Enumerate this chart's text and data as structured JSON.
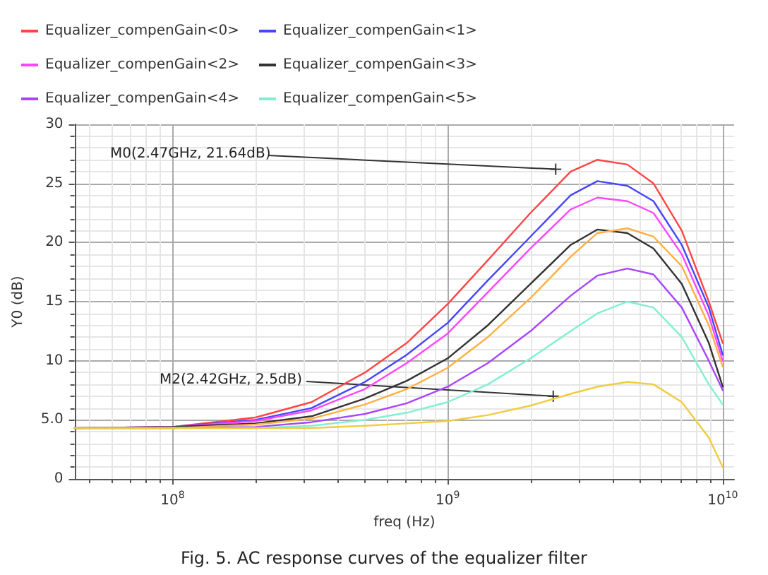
{
  "chart_data": {
    "type": "line",
    "xlabel": "freq (Hz)",
    "ylabel": "Y0 (dB)",
    "x": [
      44000000.0,
      100000000.0,
      200000000.0,
      320000000.0,
      500000000.0,
      710000000.0,
      1000000000.0,
      1400000000.0,
      2000000000.0,
      2800000000.0,
      3500000000.0,
      4500000000.0,
      5600000000.0,
      7100000000.0,
      8900000000.0,
      10000000000.0
    ],
    "series": [
      {
        "name": "Equalizer_compenGain<0>",
        "color": "#ff4545",
        "values": [
          4.3,
          4.4,
          5.2,
          6.5,
          9.0,
          11.5,
          14.8,
          18.5,
          22.5,
          26.0,
          27.0,
          26.6,
          25.0,
          21.0,
          15.0,
          11.5
        ]
      },
      {
        "name": "Equalizer_compenGain<1>",
        "color": "#4545ff",
        "values": [
          4.3,
          4.4,
          5.0,
          6.0,
          8.2,
          10.5,
          13.2,
          16.8,
          20.5,
          24.0,
          25.2,
          24.8,
          23.5,
          19.8,
          14.5,
          10.5
        ]
      },
      {
        "name": "Equalizer_compenGain<2>",
        "color": "#ff45ff",
        "values": [
          4.3,
          4.4,
          4.9,
          5.8,
          7.6,
          9.8,
          12.3,
          15.8,
          19.5,
          22.8,
          23.8,
          23.5,
          22.5,
          19.0,
          13.8,
          10.0
        ]
      },
      {
        "name": "Equalizer_compenGain<3>",
        "color": "#333333",
        "values": [
          4.3,
          4.4,
          4.7,
          5.3,
          6.8,
          8.3,
          10.2,
          13.0,
          16.5,
          19.8,
          21.1,
          20.8,
          19.5,
          16.5,
          11.5,
          7.8
        ]
      },
      {
        "color": "#ffb040",
        "values": [
          4.3,
          4.3,
          4.6,
          5.1,
          6.3,
          7.6,
          9.4,
          12.0,
          15.3,
          18.8,
          20.8,
          21.2,
          20.5,
          18.0,
          13.0,
          9.5
        ]
      },
      {
        "name": "Equalizer_compenGain<4>",
        "color": "#a845ff",
        "values": [
          4.3,
          4.3,
          4.4,
          4.8,
          5.5,
          6.4,
          7.8,
          9.8,
          12.5,
          15.5,
          17.2,
          17.8,
          17.3,
          14.5,
          10.0,
          7.5
        ]
      },
      {
        "name": "Equalizer_compenGain<5>",
        "color": "#80f0d0",
        "values": [
          4.3,
          4.3,
          4.3,
          4.5,
          5.0,
          5.6,
          6.5,
          8.0,
          10.2,
          12.5,
          14.0,
          15.0,
          14.5,
          12.0,
          8.0,
          6.3
        ]
      },
      {
        "color": "#f0cc40",
        "values": [
          4.3,
          4.3,
          4.3,
          4.3,
          4.5,
          4.7,
          4.9,
          5.4,
          6.2,
          7.2,
          7.8,
          8.2,
          8.0,
          6.5,
          3.5,
          1.0
        ]
      }
    ],
    "log": "x",
    "xlim": [
      44000000.0,
      11000000000.0
    ],
    "xticks": [
      {
        "value": 100000000.0,
        "label": "10$^{8}$"
      },
      {
        "value": 1000000000.0,
        "label": "10$^{9}$"
      },
      {
        "value": 10000000000.0,
        "label": "10$^{10}$"
      }
    ],
    "ylim": [
      0,
      30
    ],
    "yticks": [
      0,
      {
        "value": 5,
        "label": "5.0"
      },
      10,
      15,
      20,
      25,
      30
    ],
    "grid": true,
    "legend": "top",
    "marker": "none",
    "line_style": "solid",
    "annotations": [
      {
        "text": "M0(2.47GHz, 21.64dB)",
        "x": 2470000000.0,
        "y": 26.2
      },
      {
        "text": "M2(2.42GHz, 2.5dB)",
        "x": 2420000000.0,
        "y": 7.0
      },
      "Fig. 5. AC response curves of the equalizer filter"
    ]
  }
}
